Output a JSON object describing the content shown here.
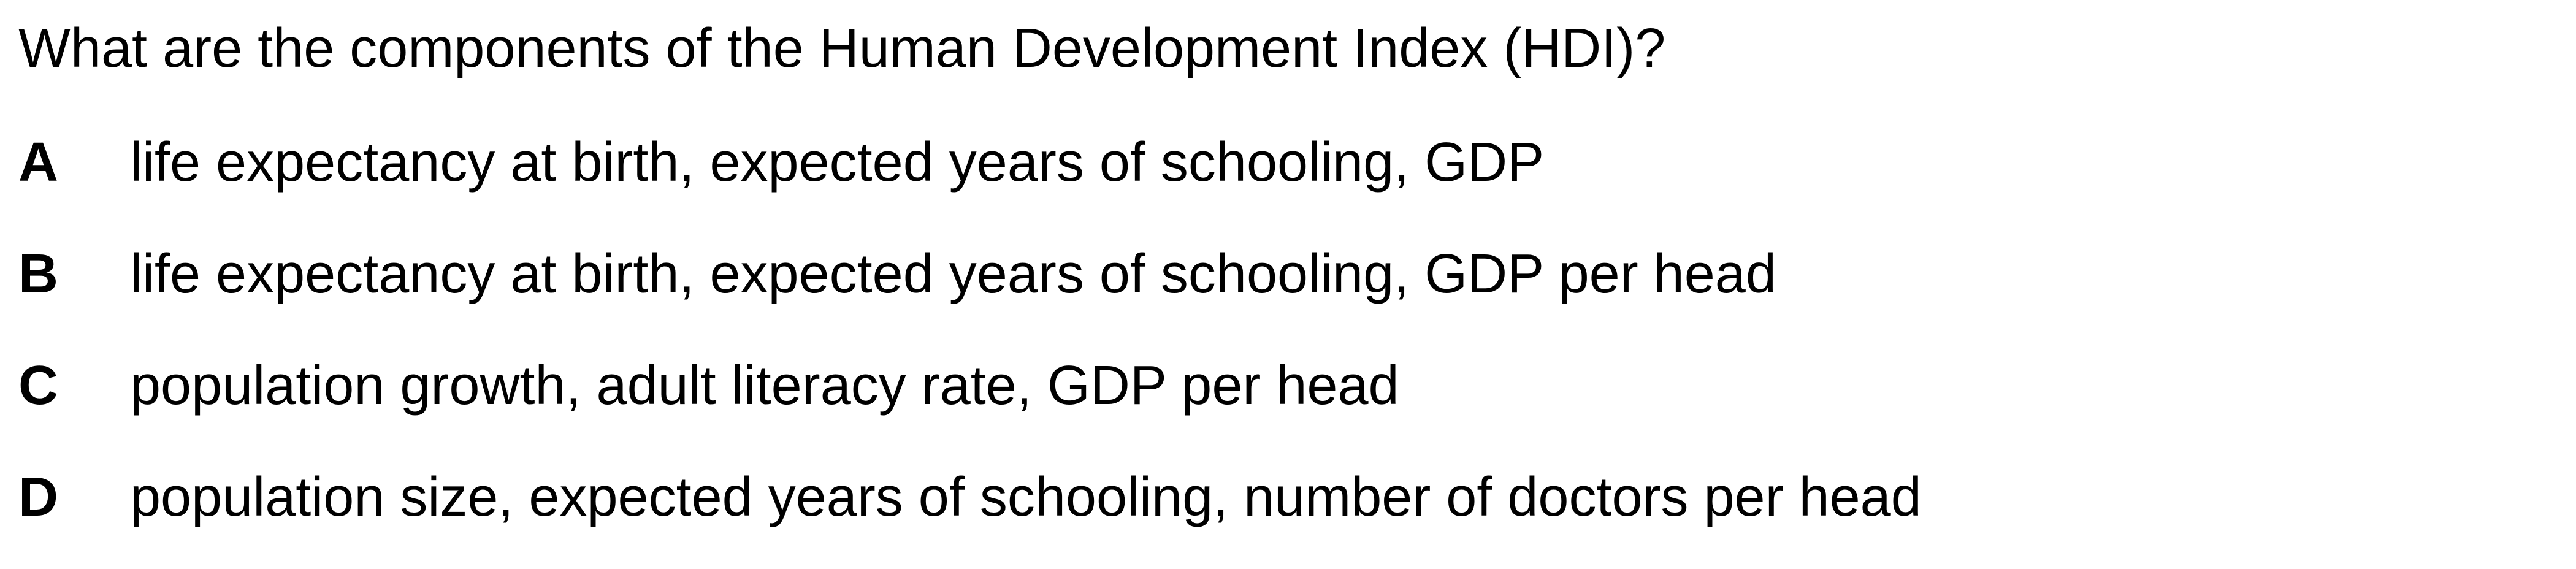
{
  "question": {
    "text": "What are the components of the Human Development Index (HDI)?"
  },
  "options": [
    {
      "letter": "A",
      "text": "life expectancy at birth, expected years of schooling, GDP"
    },
    {
      "letter": "B",
      "text": "life expectancy at birth, expected years of schooling, GDP per head"
    },
    {
      "letter": "C",
      "text": "population growth, adult literacy rate, GDP per head"
    },
    {
      "letter": "D",
      "text": "population size, expected years of schooling, number of doctors per head"
    }
  ]
}
